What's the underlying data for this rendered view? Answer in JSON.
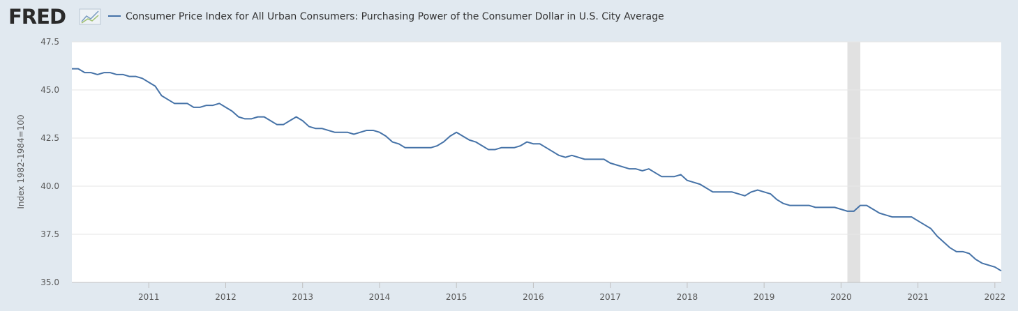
{
  "logo": "FRED",
  "chart_data": {
    "type": "line",
    "series": [
      {
        "name": "Consumer Price Index for All Urban Consumers: Purchasing Power of the Consumer Dollar in U.S. City Average",
        "color": "#4572a7",
        "values": [
          46.1,
          46.1,
          45.9,
          45.9,
          45.8,
          45.9,
          45.9,
          45.8,
          45.8,
          45.7,
          45.7,
          45.6,
          45.4,
          45.2,
          44.7,
          44.5,
          44.3,
          44.3,
          44.3,
          44.1,
          44.1,
          44.2,
          44.2,
          44.3,
          44.1,
          43.9,
          43.6,
          43.5,
          43.5,
          43.6,
          43.6,
          43.4,
          43.2,
          43.2,
          43.4,
          43.6,
          43.4,
          43.1,
          43.0,
          43.0,
          42.9,
          42.8,
          42.8,
          42.8,
          42.7,
          42.8,
          42.9,
          42.9,
          42.8,
          42.6,
          42.3,
          42.2,
          42.0,
          42.0,
          42.0,
          42.0,
          42.0,
          42.1,
          42.3,
          42.6,
          42.8,
          42.6,
          42.4,
          42.3,
          42.1,
          41.9,
          41.9,
          42.0,
          42.0,
          42.0,
          42.1,
          42.3,
          42.2,
          42.2,
          42.0,
          41.8,
          41.6,
          41.5,
          41.6,
          41.5,
          41.4,
          41.4,
          41.4,
          41.4,
          41.2,
          41.1,
          41.0,
          40.9,
          40.9,
          40.8,
          40.9,
          40.7,
          40.5,
          40.5,
          40.5,
          40.6,
          40.3,
          40.2,
          40.1,
          39.9,
          39.7,
          39.7,
          39.7,
          39.7,
          39.6,
          39.5,
          39.7,
          39.8,
          39.7,
          39.6,
          39.3,
          39.1,
          39.0,
          39.0,
          39.0,
          39.0,
          38.9,
          38.9,
          38.9,
          38.9,
          38.8,
          38.7,
          38.7,
          39.0,
          39.0,
          38.8,
          38.6,
          38.5,
          38.4,
          38.4,
          38.4,
          38.4,
          38.2,
          38.0,
          37.8,
          37.4,
          37.1,
          36.8,
          36.6,
          36.6,
          36.5,
          36.2,
          36.0,
          35.9,
          35.8,
          35.6
        ]
      }
    ],
    "x": [
      2010,
      2010.083,
      2010.167,
      2010.25,
      2010.333,
      2010.417,
      2010.5,
      2010.583,
      2010.667,
      2010.75,
      2010.833,
      2010.917,
      2011,
      2011.083,
      2011.167,
      2011.25,
      2011.333,
      2011.417,
      2011.5,
      2011.583,
      2011.667,
      2011.75,
      2011.833,
      2011.917,
      2012,
      2012.083,
      2012.167,
      2012.25,
      2012.333,
      2012.417,
      2012.5,
      2012.583,
      2012.667,
      2012.75,
      2012.833,
      2012.917,
      2013,
      2013.083,
      2013.167,
      2013.25,
      2013.333,
      2013.417,
      2013.5,
      2013.583,
      2013.667,
      2013.75,
      2013.833,
      2013.917,
      2014,
      2014.083,
      2014.167,
      2014.25,
      2014.333,
      2014.417,
      2014.5,
      2014.583,
      2014.667,
      2014.75,
      2014.833,
      2014.917,
      2015,
      2015.083,
      2015.167,
      2015.25,
      2015.333,
      2015.417,
      2015.5,
      2015.583,
      2015.667,
      2015.75,
      2015.833,
      2015.917,
      2016,
      2016.083,
      2016.167,
      2016.25,
      2016.333,
      2016.417,
      2016.5,
      2016.583,
      2016.667,
      2016.75,
      2016.833,
      2016.917,
      2017,
      2017.083,
      2017.167,
      2017.25,
      2017.333,
      2017.417,
      2017.5,
      2017.583,
      2017.667,
      2017.75,
      2017.833,
      2017.917,
      2018,
      2018.083,
      2018.167,
      2018.25,
      2018.333,
      2018.417,
      2018.5,
      2018.583,
      2018.667,
      2018.75,
      2018.833,
      2018.917,
      2019,
      2019.083,
      2019.167,
      2019.25,
      2019.333,
      2019.417,
      2019.5,
      2019.583,
      2019.667,
      2019.75,
      2019.833,
      2019.917,
      2020,
      2020.083,
      2020.167,
      2020.25,
      2020.333,
      2020.417,
      2020.5,
      2020.583,
      2020.667,
      2020.75,
      2020.833,
      2020.917,
      2021,
      2021.083,
      2021.167,
      2021.25,
      2021.333,
      2021.417,
      2021.5,
      2021.583,
      2021.667,
      2021.75,
      2021.833,
      2021.917,
      2022,
      2022.083
    ],
    "xlim": [
      2010,
      2022.083
    ],
    "xticks": [
      2011,
      2012,
      2013,
      2014,
      2015,
      2016,
      2017,
      2018,
      2019,
      2020,
      2021,
      2022
    ],
    "ylabel": "Index 1982-1984=100",
    "ylim": [
      35,
      47.5
    ],
    "yticks": [
      {
        "value": 35,
        "label": "35.0"
      },
      37.5,
      {
        "value": 40,
        "label": "40.0"
      },
      42.5,
      {
        "value": 45,
        "label": "45.0"
      },
      47.5
    ],
    "grid": true,
    "shaded_regions": [
      [
        2020.083,
        2020.25
      ]
    ],
    "shade_color": "#e1e1e1"
  }
}
